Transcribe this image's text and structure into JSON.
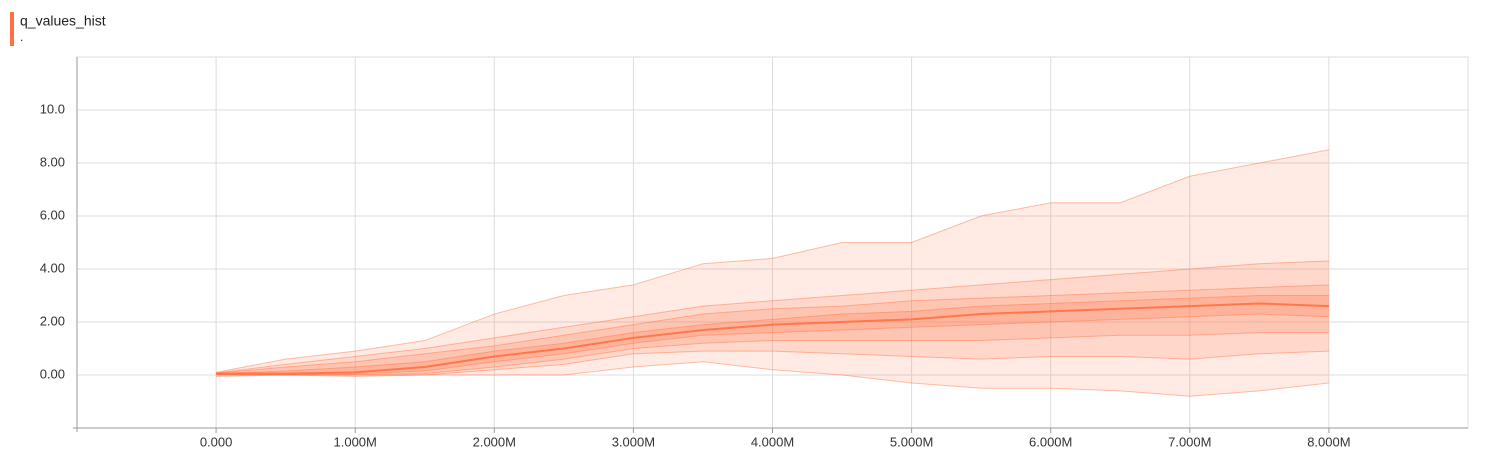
{
  "chart_data": {
    "type": "distribution",
    "title": "q_values_hist",
    "subtitle": ".",
    "color": "#ff7043",
    "grid": true,
    "x": [
      0,
      500000,
      1000000,
      1500000,
      2000000,
      2500000,
      3000000,
      3500000,
      4000000,
      4500000,
      5000000,
      5500000,
      6000000,
      6500000,
      7000000,
      7500000,
      8000000
    ],
    "series": [
      {
        "values": [
          -0.05,
          0,
          -0.05,
          0,
          0,
          0,
          0.3,
          0.5,
          0.2,
          0,
          -0.3,
          -0.5,
          -0.5,
          -0.6,
          -0.8,
          -0.6,
          -0.3
        ]
      },
      {
        "values": [
          0,
          0,
          0,
          0,
          0.2,
          0.4,
          0.8,
          0.9,
          0.9,
          0.8,
          0.7,
          0.6,
          0.7,
          0.7,
          0.6,
          0.8,
          0.9
        ]
      },
      {
        "values": [
          0.02,
          0,
          0.02,
          0.05,
          0.3,
          0.6,
          1.0,
          1.2,
          1.3,
          1.3,
          1.3,
          1.3,
          1.4,
          1.5,
          1.5,
          1.6,
          1.6
        ]
      },
      {
        "values": [
          0.03,
          0.02,
          0.05,
          0.15,
          0.5,
          0.8,
          1.2,
          1.5,
          1.6,
          1.7,
          1.8,
          1.9,
          2.0,
          2.1,
          2.2,
          2.3,
          2.2
        ]
      },
      {
        "values": [
          0.05,
          0.05,
          0.1,
          0.3,
          0.7,
          1.0,
          1.4,
          1.7,
          1.9,
          2.0,
          2.1,
          2.3,
          2.4,
          2.5,
          2.6,
          2.7,
          2.6
        ]
      },
      {
        "values": [
          0.06,
          0.15,
          0.3,
          0.5,
          0.9,
          1.2,
          1.6,
          1.9,
          2.1,
          2.3,
          2.4,
          2.6,
          2.7,
          2.8,
          2.9,
          3.0,
          3.0
        ]
      },
      {
        "values": [
          0.07,
          0.3,
          0.5,
          0.8,
          1.1,
          1.5,
          1.9,
          2.3,
          2.5,
          2.6,
          2.8,
          2.9,
          3.0,
          3.1,
          3.2,
          3.3,
          3.4
        ]
      },
      {
        "values": [
          0.08,
          0.4,
          0.7,
          1.0,
          1.4,
          1.8,
          2.2,
          2.6,
          2.8,
          3.0,
          3.2,
          3.4,
          3.6,
          3.8,
          4.0,
          4.2,
          4.3
        ]
      },
      {
        "values": [
          0.1,
          0.6,
          0.9,
          1.3,
          2.3,
          3.0,
          3.4,
          4.2,
          4.4,
          5.0,
          5.0,
          6.0,
          6.5,
          6.5,
          7.5,
          8.0,
          8.5
        ]
      }
    ],
    "xlim": [
      -1000000,
      9000000
    ],
    "xticks": [
      {
        "value": 0,
        "label": "0.000"
      },
      {
        "value": 1000000,
        "label": "1.000M"
      },
      {
        "value": 2000000,
        "label": "2.000M"
      },
      {
        "value": 3000000,
        "label": "3.000M"
      },
      {
        "value": 4000000,
        "label": "4.000M"
      },
      {
        "value": 5000000,
        "label": "5.000M"
      },
      {
        "value": 6000000,
        "label": "6.000M"
      },
      {
        "value": 7000000,
        "label": "7.000M"
      },
      {
        "value": 8000000,
        "label": "8.000M"
      }
    ],
    "ylim": [
      -2,
      12
    ],
    "yticks": [
      {
        "value": 0,
        "label": "0.00"
      },
      {
        "value": 2,
        "label": "2.00"
      },
      {
        "value": 4,
        "label": "4.00"
      },
      {
        "value": 6,
        "label": "6.00"
      },
      {
        "value": 8,
        "label": "8.00"
      },
      {
        "value": 10,
        "label": "10.0"
      }
    ]
  }
}
